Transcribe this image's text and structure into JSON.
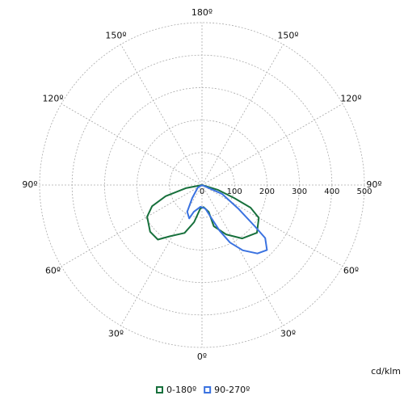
{
  "chart_data": {
    "type": "polar",
    "unit_label": "cd/klm",
    "rlim": [
      0,
      500
    ],
    "rticks": [
      0,
      100,
      200,
      300,
      400,
      500
    ],
    "angle_ticks": [
      {
        "value": 180,
        "label": "180º"
      },
      {
        "value": -150,
        "label": "150º"
      },
      {
        "value": 150,
        "label": "150º"
      },
      {
        "value": -120,
        "label": "120º"
      },
      {
        "value": 120,
        "label": "120º"
      },
      {
        "value": -90,
        "label": "90º"
      },
      {
        "value": 90,
        "label": "90º"
      },
      {
        "value": -60,
        "label": "60º"
      },
      {
        "value": 60,
        "label": "60º"
      },
      {
        "value": -30,
        "label": "30º"
      },
      {
        "value": 30,
        "label": "30º"
      },
      {
        "value": 0,
        "label": "0º"
      }
    ],
    "grid": true,
    "series": [
      {
        "name": "0-180º",
        "color": "#17703c",
        "angles": [
          180,
          -79,
          -73,
          -67,
          -60,
          -48,
          -39,
          -32,
          -20,
          -12,
          -4,
          4,
          14,
          16,
          26,
          37,
          49,
          60,
          65,
          68,
          73,
          180
        ],
        "values": [
          0,
          51,
          117,
          167,
          195,
          215,
          216,
          186,
          157,
          117,
          72,
          68,
          85,
          132,
          169,
          206,
          224,
          202,
          165,
          107,
          52,
          0
        ]
      },
      {
        "name": "90-270º",
        "color": "#3a72e0",
        "angles": [
          180,
          66,
          57,
          52,
          50,
          45,
          39,
          32,
          26,
          21,
          16,
          8,
          -4,
          -17,
          -21,
          -29,
          -37,
          -59,
          180
        ],
        "values": [
          0,
          68,
          133,
          206,
          254,
          283,
          271,
          237,
          197,
          150,
          106,
          73,
          67,
          86,
          110,
          94,
          50,
          15,
          0
        ]
      }
    ]
  }
}
